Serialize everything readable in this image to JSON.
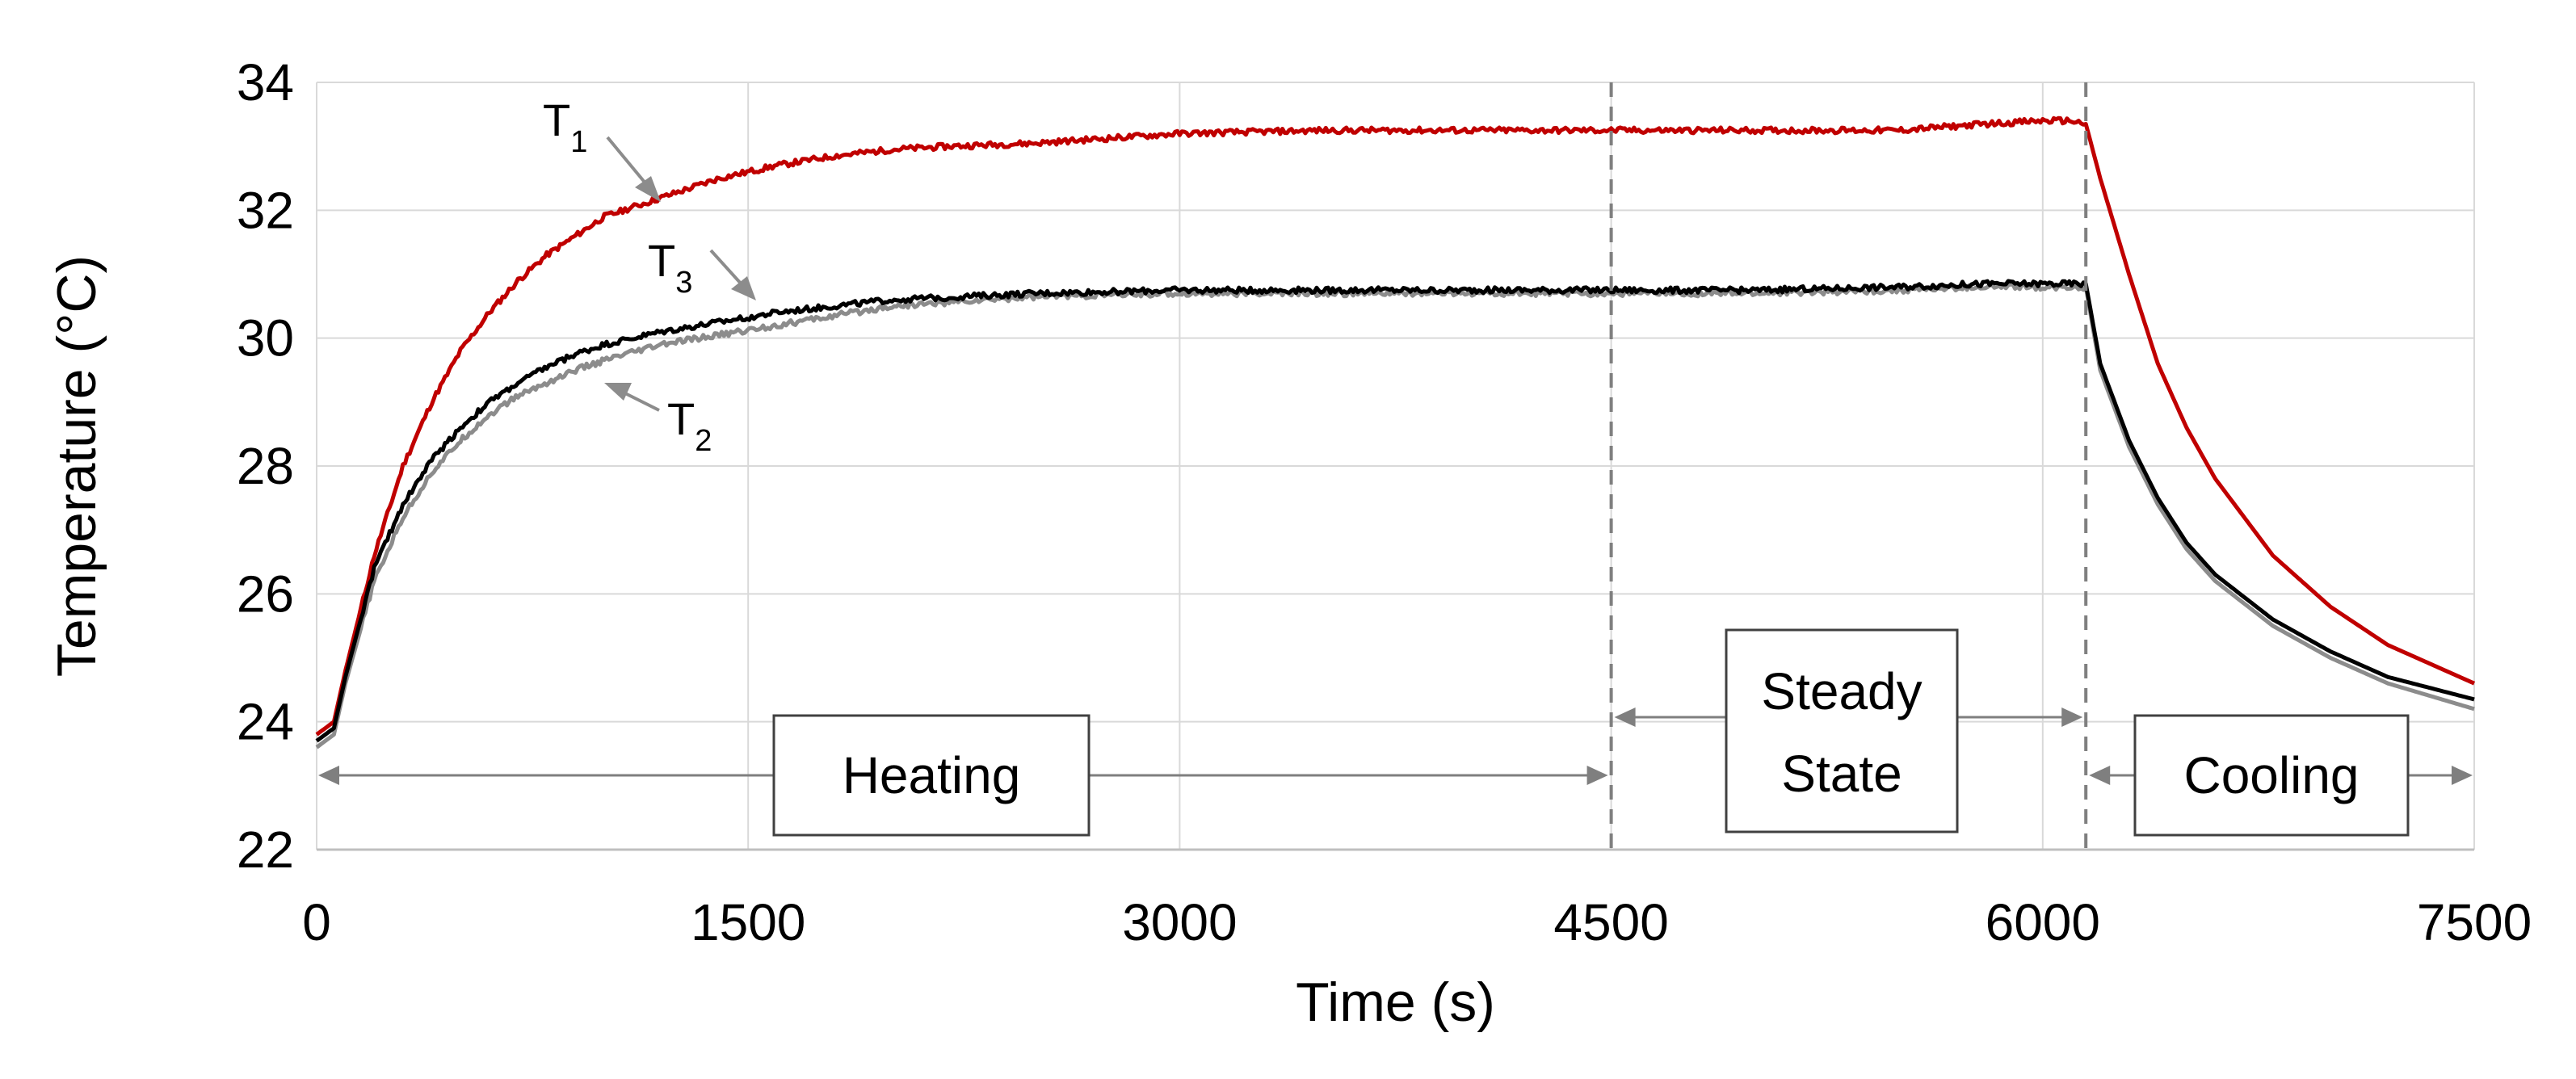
{
  "chart_data": {
    "type": "line",
    "title": "",
    "xlabel": "Time (s)",
    "ylabel": "Temperature (°C)",
    "xlim": [
      0,
      7500
    ],
    "ylim": [
      22,
      34
    ],
    "x_ticks": [
      0,
      1500,
      3000,
      4500,
      6000,
      7500
    ],
    "y_ticks": [
      22,
      24,
      26,
      28,
      30,
      32,
      34
    ],
    "grid": true,
    "series": [
      {
        "name": "T1",
        "label_main": "T",
        "label_sub": "1",
        "color": "#c00000",
        "x": [
          0,
          60,
          100,
          200,
          300,
          400,
          500,
          600,
          700,
          800,
          900,
          1000,
          1200,
          1400,
          1600,
          1800,
          2000,
          2200,
          2500,
          3000,
          3500,
          4000,
          4500,
          5000,
          5500,
          5800,
          6000,
          6100,
          6150,
          6200,
          6300,
          6400,
          6500,
          6600,
          6800,
          7000,
          7200,
          7500
        ],
        "y": [
          23.8,
          24.0,
          24.8,
          26.6,
          28.0,
          29.0,
          29.8,
          30.4,
          30.9,
          31.3,
          31.6,
          31.9,
          32.2,
          32.5,
          32.7,
          32.85,
          32.95,
          33.0,
          33.05,
          33.2,
          33.25,
          33.25,
          33.25,
          33.25,
          33.25,
          33.35,
          33.4,
          33.4,
          33.35,
          32.5,
          31.0,
          29.6,
          28.6,
          27.8,
          26.6,
          25.8,
          25.2,
          24.6
        ]
      },
      {
        "name": "T2",
        "label_main": "T",
        "label_sub": "2",
        "color": "#8c8c8c",
        "x": [
          0,
          60,
          100,
          200,
          300,
          400,
          500,
          600,
          700,
          800,
          900,
          1000,
          1200,
          1400,
          1600,
          1800,
          2000,
          2500,
          3000,
          3500,
          4000,
          4500,
          5000,
          5500,
          5800,
          6000,
          6100,
          6150,
          6200,
          6300,
          6400,
          6500,
          6600,
          6800,
          7000,
          7200,
          7500
        ],
        "y": [
          23.6,
          23.8,
          24.6,
          26.2,
          27.2,
          27.9,
          28.4,
          28.8,
          29.1,
          29.3,
          29.5,
          29.65,
          29.9,
          30.05,
          30.2,
          30.35,
          30.5,
          30.65,
          30.7,
          30.7,
          30.7,
          30.7,
          30.7,
          30.75,
          30.8,
          30.8,
          30.8,
          30.8,
          29.5,
          28.3,
          27.4,
          26.7,
          26.2,
          25.5,
          25.0,
          24.6,
          24.2
        ]
      },
      {
        "name": "T3",
        "label_main": "T",
        "label_sub": "3",
        "color": "#000000",
        "x": [
          0,
          60,
          100,
          200,
          300,
          400,
          500,
          600,
          700,
          800,
          900,
          1000,
          1200,
          1400,
          1600,
          1800,
          2000,
          2500,
          3000,
          3500,
          4000,
          4500,
          5000,
          5500,
          5800,
          6000,
          6100,
          6150,
          6200,
          6300,
          6400,
          6500,
          6600,
          6800,
          7000,
          7200,
          7500
        ],
        "y": [
          23.7,
          23.9,
          24.7,
          26.4,
          27.4,
          28.1,
          28.6,
          29.0,
          29.3,
          29.55,
          29.75,
          29.9,
          30.1,
          30.25,
          30.4,
          30.5,
          30.6,
          30.7,
          30.75,
          30.75,
          30.75,
          30.75,
          30.75,
          30.8,
          30.85,
          30.85,
          30.85,
          30.85,
          29.6,
          28.4,
          27.5,
          26.8,
          26.3,
          25.6,
          25.1,
          24.7,
          24.35
        ]
      }
    ],
    "phase_dividers": [
      4500,
      6150
    ],
    "phases": [
      {
        "label": "Heating",
        "x_start": 0,
        "x_end": 4500
      },
      {
        "label_line1": "Steady",
        "label_line2": "State",
        "x_start": 4500,
        "x_end": 6150
      },
      {
        "label": "Cooling",
        "x_start": 6150,
        "x_end": 7500
      }
    ]
  }
}
